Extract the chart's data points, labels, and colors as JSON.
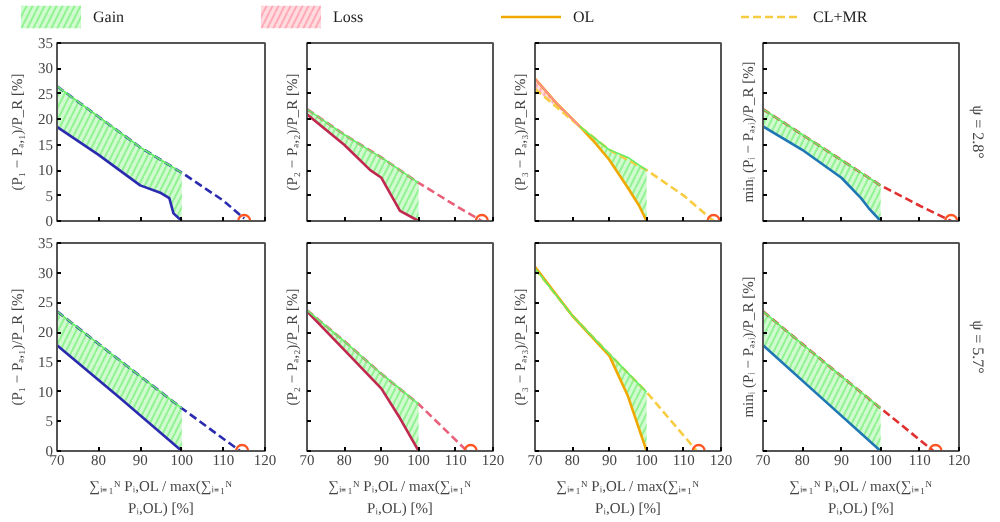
{
  "chart_data": [
    {
      "type": "line",
      "ylabel": "(P₁ − Pₐ,₁)/P_R [%]",
      "xlim": [
        70,
        120
      ],
      "ylim": [
        0,
        35
      ],
      "xticks": [
        70,
        80,
        90,
        100,
        110,
        120
      ],
      "yticks": [
        0,
        5,
        10,
        15,
        20,
        25,
        30,
        35
      ],
      "tick_labels": "y",
      "grid": false,
      "series": [
        {
          "type": "line",
          "color": "#66ee66",
          "x": [
            70,
            80,
            90,
            95,
            97,
            98,
            100
          ],
          "values": [
            26.5,
            20.5,
            14.5,
            12,
            11,
            10.5,
            9.5
          ],
          "upper": [
            26.5,
            20.5,
            14.5,
            12,
            11,
            10.5,
            9.5
          ],
          "lower": [
            18.5,
            13,
            7,
            5.5,
            4.5,
            1.5,
            0
          ]
        },
        {
          "type": "line",
          "color": "#2b2bb0",
          "line_style": "solid",
          "x": [
            70,
            80,
            90,
            95,
            97,
            98,
            100
          ],
          "values": [
            18.5,
            13,
            7,
            5.5,
            4.5,
            1.5,
            0
          ]
        },
        {
          "type": "line",
          "color": "#2b2bb0",
          "line_style": "dashed",
          "x": [
            70,
            80,
            90,
            100,
            110,
            115
          ],
          "values": [
            26.5,
            20.5,
            14.5,
            9.5,
            4,
            0.5
          ]
        },
        {
          "type": "scatter",
          "color": "#ff5522",
          "marker": "circle",
          "x": [
            115
          ],
          "values": [
            0
          ]
        }
      ]
    },
    {
      "type": "line",
      "ylabel": "(P₂ − Pₐ,₂)/P_R [%]",
      "xlim": [
        70,
        120
      ],
      "ylim": [
        0,
        35
      ],
      "xticks": [
        70,
        80,
        90,
        100,
        110,
        120
      ],
      "yticks": [
        0,
        5,
        10,
        15,
        20,
        25,
        30,
        35
      ],
      "tick_labels": false,
      "grid": false,
      "series": [
        {
          "type": "line",
          "color": "#66ee66",
          "x": [
            70,
            80,
            87,
            90,
            95,
            100
          ],
          "values": [
            22,
            17,
            13.8,
            12.5,
            10,
            7.5
          ],
          "upper": [
            22,
            17,
            13.8,
            12.5,
            10,
            7.5
          ],
          "lower": [
            21,
            15,
            10,
            8.5,
            2,
            0
          ]
        },
        {
          "type": "line",
          "color": "#c0284f",
          "line_style": "solid",
          "x": [
            70,
            80,
            87,
            90,
            95,
            100
          ],
          "values": [
            21,
            15,
            10,
            8.5,
            2,
            0
          ]
        },
        {
          "type": "line",
          "color": "#e8607a",
          "line_style": "dashed",
          "x": [
            70,
            80,
            90,
            100,
            110,
            117
          ],
          "values": [
            22,
            17,
            12.5,
            7.5,
            3,
            0
          ]
        },
        {
          "type": "scatter",
          "color": "#ff5522",
          "marker": "circle",
          "x": [
            117
          ],
          "values": [
            0
          ]
        }
      ]
    },
    {
      "type": "line",
      "ylabel": "(P₃ − Pₐ,₃)/P_R [%]",
      "xlim": [
        70,
        120
      ],
      "ylim": [
        0,
        35
      ],
      "xticks": [
        70,
        80,
        90,
        100,
        110,
        120
      ],
      "yticks": [
        0,
        5,
        10,
        15,
        20,
        25,
        30,
        35
      ],
      "tick_labels": false,
      "grid": false,
      "legend": "top",
      "series": [
        {
          "type": "line",
          "name": "Gain",
          "color": "#66ee66",
          "x": [
            82,
            86,
            90,
            95,
            98,
            100
          ],
          "values": [
            18.6,
            16.3,
            14,
            12.5,
            11,
            10
          ],
          "upper": [
            18.6,
            16.3,
            14,
            12.5,
            11,
            10
          ],
          "lower": [
            18.6,
            15.5,
            12,
            6.5,
            3,
            0
          ]
        },
        {
          "type": "line",
          "name": "Loss",
          "color": "#ff8899",
          "x": [
            70,
            76,
            82
          ],
          "values": [
            28,
            23,
            18.6
          ],
          "upper": [
            28,
            23,
            18.6
          ],
          "lower": [
            26,
            22.3,
            18.6
          ]
        },
        {
          "type": "line",
          "name": "OL",
          "color": "#f0a800",
          "line_style": "solid",
          "x": [
            70,
            76,
            82,
            86,
            90,
            95,
            98,
            100
          ],
          "values": [
            28,
            23,
            18.6,
            15.5,
            12,
            6.5,
            3,
            0
          ]
        },
        {
          "type": "line",
          "name": "CL+MR",
          "color": "#f8cc40",
          "line_style": "dashed",
          "x": [
            70,
            82,
            90,
            100,
            110,
            118
          ],
          "values": [
            26,
            18.6,
            14,
            10,
            5,
            0
          ]
        },
        {
          "type": "scatter",
          "color": "#ff5522",
          "marker": "circle",
          "x": [
            118
          ],
          "values": [
            0
          ]
        }
      ]
    },
    {
      "type": "line",
      "ylabel": "minᵢ (Pᵢ − Pₐ,ᵢ)/P_R [%]",
      "annotations": [
        "ψ = 2.8°"
      ],
      "xlim": [
        70,
        120
      ],
      "ylim": [
        0,
        35
      ],
      "xticks": [
        70,
        80,
        90,
        100,
        110,
        120
      ],
      "yticks": [
        0,
        5,
        10,
        15,
        20,
        25,
        30,
        35
      ],
      "tick_labels": false,
      "grid": false,
      "series": [
        {
          "type": "line",
          "color": "#66ee66",
          "x": [
            70,
            80,
            90,
            95,
            97,
            100
          ],
          "values": [
            22,
            17,
            12,
            9.5,
            8.5,
            7
          ],
          "upper": [
            22,
            17,
            12,
            9.5,
            8.5,
            7
          ],
          "lower": [
            18.6,
            14,
            8.5,
            4.5,
            2.5,
            0
          ]
        },
        {
          "type": "line",
          "color": "#1f77b4",
          "line_style": "solid",
          "x": [
            70,
            80,
            90,
            95,
            97,
            100
          ],
          "values": [
            18.6,
            14,
            8.5,
            4.5,
            2.5,
            0
          ]
        },
        {
          "type": "line",
          "color": "#e03030",
          "line_style": "dashed",
          "x": [
            70,
            80,
            90,
            100,
            110,
            118
          ],
          "values": [
            22,
            17,
            12,
            7,
            3,
            0
          ]
        },
        {
          "type": "scatter",
          "color": "#ff5522",
          "marker": "circle",
          "x": [
            118
          ],
          "values": [
            0
          ]
        }
      ]
    },
    {
      "type": "line",
      "ylabel": "(P₁ − Pₐ,₁)/P_R [%]",
      "xlabel": "∑ᵢ₌₁ᴺ Pᵢ,OL / max(∑ᵢ₌₁ᴺ Pᵢ,OL) [%]",
      "xlim": [
        70,
        120
      ],
      "ylim": [
        0,
        35
      ],
      "xticks": [
        70,
        80,
        90,
        100,
        110,
        120
      ],
      "yticks": [
        0,
        5,
        10,
        15,
        20,
        25,
        30,
        35
      ],
      "grid": false,
      "series": [
        {
          "type": "line",
          "color": "#66ee66",
          "x": [
            70,
            85,
            100
          ],
          "values": [
            23.5,
            15.3,
            7.2
          ],
          "upper": [
            23.5,
            15.3,
            7.2
          ],
          "lower": [
            17.8,
            9,
            0
          ]
        },
        {
          "type": "line",
          "color": "#2b2bb0",
          "line_style": "solid",
          "x": [
            70,
            85,
            100
          ],
          "values": [
            17.8,
            9,
            0
          ]
        },
        {
          "type": "line",
          "color": "#2b2bb0",
          "line_style": "dashed",
          "x": [
            70,
            85,
            100,
            114
          ],
          "values": [
            23.5,
            15.3,
            7.2,
            0
          ]
        },
        {
          "type": "scatter",
          "color": "#ff5522",
          "marker": "circle",
          "x": [
            114.5
          ],
          "values": [
            0
          ]
        }
      ]
    },
    {
      "type": "line",
      "ylabel": "(P₂ − Pₐ,₂)/P_R [%]",
      "xlabel": "∑ᵢ₌₁ᴺ Pᵢ,OL / max(∑ᵢ₌₁ᴺ Pᵢ,OL) [%]",
      "xlim": [
        70,
        120
      ],
      "ylim": [
        0,
        35
      ],
      "xticks": [
        70,
        80,
        90,
        100,
        110,
        120
      ],
      "yticks": [
        0,
        5,
        10,
        15,
        20,
        25,
        30,
        35
      ],
      "tick_labels": "x",
      "grid": false,
      "series": [
        {
          "type": "line",
          "color": "#66ee66",
          "x": [
            70,
            80,
            90,
            95,
            100
          ],
          "values": [
            23.7,
            18.5,
            13,
            10.5,
            7.9
          ],
          "upper": [
            23.7,
            18.5,
            13,
            10.5,
            7.9
          ],
          "lower": [
            23.5,
            17,
            10.5,
            5.5,
            0
          ]
        },
        {
          "type": "line",
          "color": "#e8607a",
          "line_style": "dashed",
          "x": [
            70,
            80,
            90,
            100,
            113
          ],
          "values": [
            23.7,
            18.5,
            13,
            7.9,
            0
          ]
        },
        {
          "type": "line",
          "color": "#c0284f",
          "line_style": "solid",
          "x": [
            70,
            80,
            90,
            95,
            100
          ],
          "values": [
            23.5,
            17,
            10.5,
            5.5,
            0
          ]
        },
        {
          "type": "scatter",
          "color": "#ff5522",
          "marker": "circle",
          "x": [
            114
          ],
          "values": [
            0
          ]
        }
      ]
    },
    {
      "type": "line",
      "ylabel": "(P₃ − Pₐ,₃)/P_R [%]",
      "xlabel": "∑ᵢ₌₁ᴺ Pᵢ,OL / max(∑ᵢ₌₁ᴺ Pᵢ,OL) [%]",
      "xlim": [
        70,
        120
      ],
      "ylim": [
        0,
        35
      ],
      "xticks": [
        70,
        80,
        90,
        100,
        110,
        120
      ],
      "yticks": [
        0,
        5,
        10,
        15,
        20,
        25,
        30,
        35
      ],
      "tick_labels": "x",
      "grid": false,
      "series": [
        {
          "type": "line",
          "color": "#66ee66",
          "x": [
            70,
            80,
            90,
            95,
            100
          ],
          "values": [
            30.7,
            22.8,
            16.3,
            13.1,
            9.9
          ],
          "upper": [
            30.7,
            22.8,
            16.3,
            13.1,
            9.9
          ],
          "lower": [
            31,
            22.8,
            16,
            9.2,
            0
          ]
        },
        {
          "type": "line",
          "color": "#f8cc40",
          "line_style": "dashed",
          "x": [
            70,
            80,
            90,
            100,
            113.5
          ],
          "values": [
            30.7,
            22.8,
            16.3,
            9.9,
            0
          ]
        },
        {
          "type": "line",
          "color": "#f0a800",
          "line_style": "solid",
          "x": [
            70,
            80,
            90,
            95,
            100
          ],
          "values": [
            31,
            22.8,
            16,
            9.2,
            0
          ]
        },
        {
          "type": "scatter",
          "color": "#ff5522",
          "marker": "circle",
          "x": [
            114
          ],
          "values": [
            0
          ]
        }
      ]
    },
    {
      "type": "line",
      "ylabel": "minᵢ (Pᵢ − Pₐ,ᵢ)/P_R [%]",
      "xlabel": "∑ᵢ₌₁ᴺ Pᵢ,OL / max(∑ᵢ₌₁ᴺ Pᵢ,OL) [%]",
      "annotations": [
        "ψ = 5.7°"
      ],
      "xlim": [
        70,
        120
      ],
      "ylim": [
        0,
        35
      ],
      "xticks": [
        70,
        80,
        90,
        100,
        110,
        120
      ],
      "yticks": [
        0,
        5,
        10,
        15,
        20,
        25,
        30,
        35
      ],
      "tick_labels": "x",
      "grid": false,
      "series": [
        {
          "type": "line",
          "color": "#66ee66",
          "x": [
            70,
            85,
            100
          ],
          "values": [
            23.5,
            15.3,
            7.2
          ],
          "upper": [
            23.5,
            15.3,
            7.2
          ],
          "lower": [
            17.8,
            8.9,
            0
          ]
        },
        {
          "type": "line",
          "color": "#1f77b4",
          "line_style": "solid",
          "x": [
            70,
            85,
            100
          ],
          "values": [
            17.8,
            8.9,
            0
          ]
        },
        {
          "type": "line",
          "color": "#e03030",
          "line_style": "dashed",
          "x": [
            70,
            85,
            100,
            113.5
          ],
          "values": [
            23.5,
            15.3,
            7.2,
            0
          ]
        },
        {
          "type": "scatter",
          "color": "#ff5522",
          "marker": "circle",
          "x": [
            114
          ],
          "values": [
            0
          ]
        }
      ]
    }
  ]
}
